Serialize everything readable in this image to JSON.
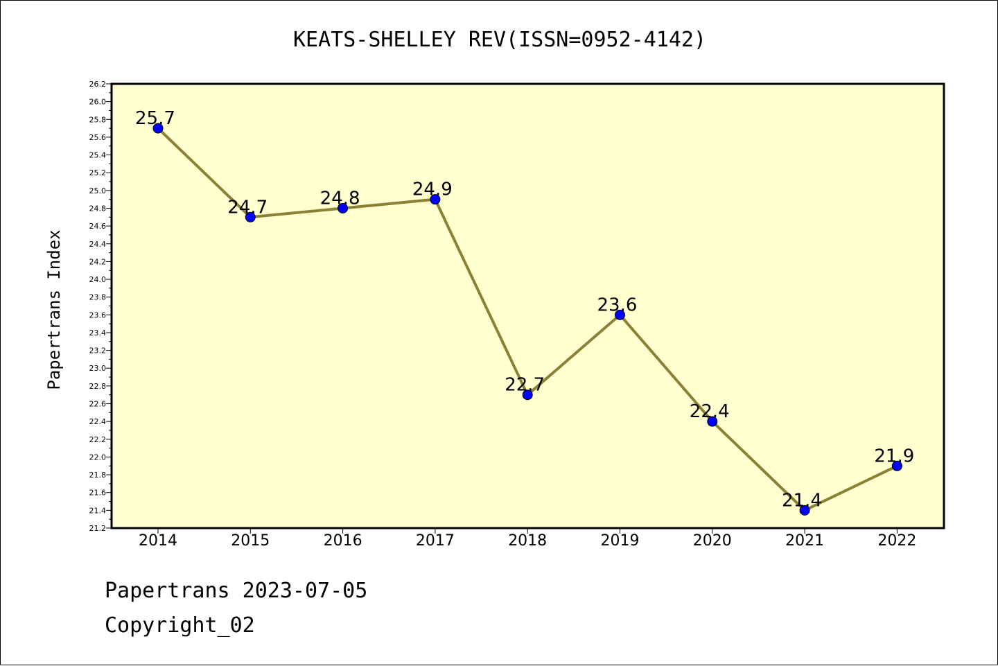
{
  "chart_data": {
    "type": "line",
    "title": "KEATS-SHELLEY REV(ISSN=0952-4142)",
    "ylabel": "Papertrans Index",
    "xlabel": "",
    "categories": [
      "2014",
      "2015",
      "2016",
      "2017",
      "2018",
      "2019",
      "2020",
      "2021",
      "2022"
    ],
    "series": [
      {
        "values": [
          25.7,
          24.7,
          24.8,
          24.9,
          22.7,
          23.6,
          22.4,
          21.4,
          21.9
        ]
      }
    ],
    "data_labels": [
      "25.7",
      "24.7",
      "24.8",
      "24.9",
      "22.7",
      "23.6",
      "22.4",
      "21.4",
      "21.9"
    ],
    "ylim": [
      21.2,
      26.2
    ],
    "yticks": [
      "21.2",
      "21.4",
      "21.6",
      "21.8",
      "22.0",
      "22.2",
      "22.4",
      "22.6",
      "22.8",
      "23.0",
      "23.2",
      "23.4",
      "23.6",
      "23.8",
      "24.0",
      "24.2",
      "24.4",
      "24.6",
      "24.8",
      "25.0",
      "25.2",
      "25.4",
      "25.6",
      "25.8",
      "26.0",
      "26.2"
    ],
    "grid": false,
    "colors": {
      "plot_background": "#ffffd0",
      "line": "#8c8034",
      "marker": "#0000ff"
    }
  },
  "footer": {
    "line1": "Papertrans 2023-07-05",
    "line2": "Copyright_02"
  }
}
